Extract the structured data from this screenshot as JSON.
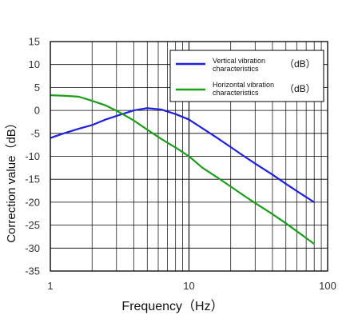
{
  "chart_data": {
    "type": "line",
    "title": "",
    "xlabel": "Frequency（Hz）",
    "ylabel": "Correction value（dB）",
    "xscale": "log",
    "xlim": [
      1,
      100
    ],
    "ylim": [
      -35,
      15
    ],
    "x_ticks": [
      "1",
      "10",
      "100"
    ],
    "y_ticks": [
      "15",
      "10",
      "5",
      "0",
      "-5",
      "-10",
      "-15",
      "-20",
      "-25",
      "-30",
      "-35"
    ],
    "grid": true,
    "legend_position": "top-right",
    "series": [
      {
        "name_lines": [
          "Vertical vibration",
          "characteristics"
        ],
        "unit": "（dB）",
        "color": "#1f1fe0",
        "x": [
          1,
          1.25,
          1.6,
          2,
          2.5,
          3.15,
          4,
          5,
          6.3,
          8,
          10,
          12.5,
          16,
          20,
          25,
          31.5,
          40,
          50,
          63,
          80
        ],
        "y": [
          -6,
          -5,
          -4,
          -3.2,
          -2,
          -1,
          0,
          0.5,
          0.2,
          -0.8,
          -2,
          -3.9,
          -6,
          -8,
          -10,
          -12,
          -14,
          -16,
          -18,
          -20
        ]
      },
      {
        "name_lines": [
          "Horizontal vibration",
          "characteristics"
        ],
        "unit": "（dB）",
        "color": "#1a9e1a",
        "x": [
          1,
          1.25,
          1.6,
          2,
          2.5,
          3.15,
          4,
          5,
          6.3,
          8,
          10,
          12.5,
          16,
          20,
          25,
          31.5,
          40,
          50,
          63,
          80
        ],
        "y": [
          3.3,
          3.2,
          3,
          2.1,
          1.1,
          -0.4,
          -2.2,
          -4.2,
          -6.2,
          -8.1,
          -10,
          -12.5,
          -14.6,
          -16.6,
          -18.6,
          -20.6,
          -22.6,
          -24.6,
          -26.8,
          -29.1
        ]
      }
    ]
  }
}
